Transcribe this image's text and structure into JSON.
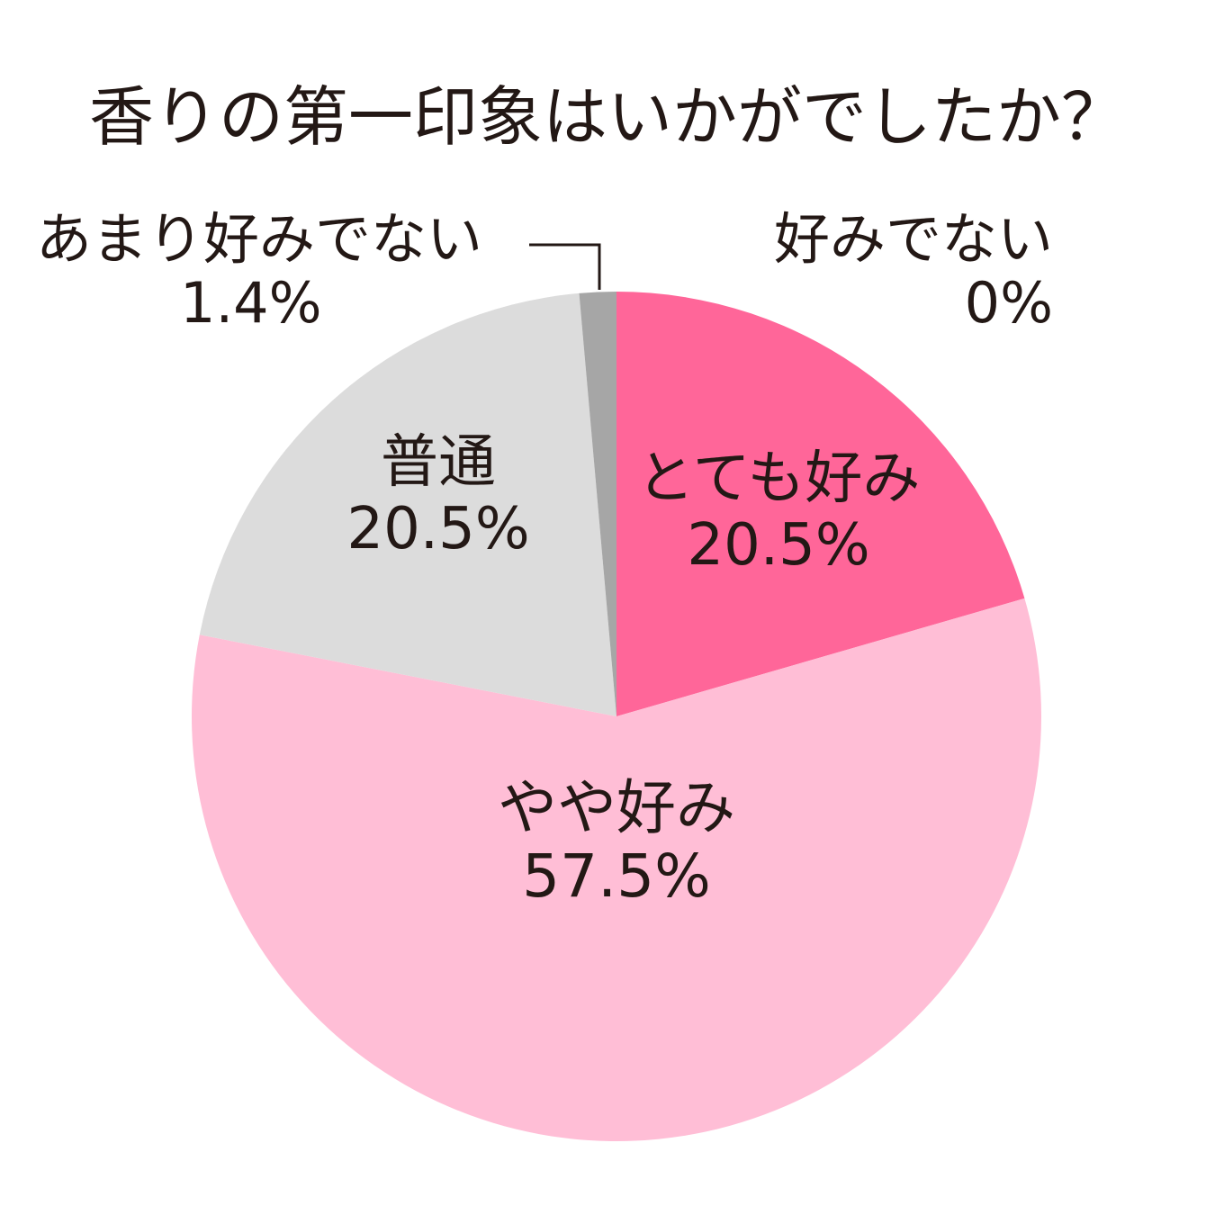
{
  "title": "香りの第一印象はいかがでしたか？",
  "chart_data": {
    "type": "pie",
    "title": "香りの第一印象はいかがでしたか？",
    "unit": "%",
    "start_angle": "12 o'clock",
    "direction": "clockwise",
    "slices": [
      {
        "label": "とても好み",
        "value": 20.5,
        "value_text": "20.5%",
        "color": "#ff6699"
      },
      {
        "label": "やや好み",
        "value": 57.5,
        "value_text": "57.5%",
        "color": "#ffbed6"
      },
      {
        "label": "普通",
        "value": 20.5,
        "value_text": "20.5%",
        "color": "#dcdcdc"
      },
      {
        "label": "あまり好みでない",
        "value": 1.4,
        "value_text": "1.4%",
        "color": "#a6a6a6"
      },
      {
        "label": "好みでない",
        "value": 0,
        "value_text": "0%",
        "color": "#808080"
      }
    ]
  }
}
